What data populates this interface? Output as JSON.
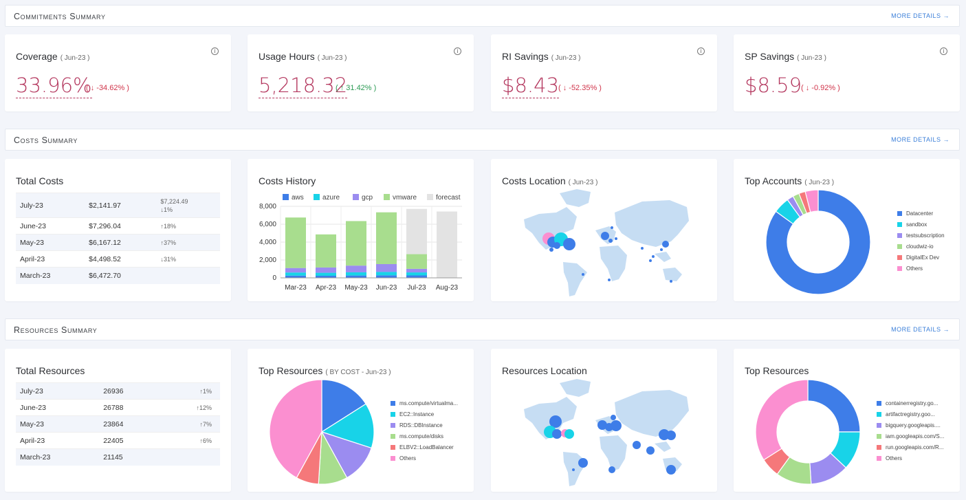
{
  "sections": {
    "commitments": "Commitments Summary",
    "costs": "Costs Summary",
    "resources": "Resources Summary",
    "more": "MORE DETAILS"
  },
  "kpis": [
    {
      "title": "Coverage",
      "period": "( Jun-23 )",
      "value": "33.96%",
      "change": "( ↓ -34.62% )",
      "dir": "down"
    },
    {
      "title": "Usage Hours",
      "period": "( Jun-23 )",
      "value": "5,218.32",
      "change": "( ↑ 31.42% )",
      "dir": "up"
    },
    {
      "title": "RI Savings",
      "period": "( Jun-23 )",
      "value": "$8.43",
      "change": "( ↓ -52.35% )",
      "dir": "down"
    },
    {
      "title": "SP Savings",
      "period": "( Jun-23 )",
      "value": "$8.59",
      "change": "( ↓ -0.92% )",
      "dir": "down"
    }
  ],
  "total_costs": {
    "title": "Total Costs",
    "rows": [
      {
        "month": "July-23",
        "value": "$2,141.97",
        "extra": "$7,224.49",
        "chg": "↓1%",
        "dir": "neutral"
      },
      {
        "month": "June-23",
        "value": "$7,296.04",
        "chg": "↑18%",
        "dir": "up"
      },
      {
        "month": "May-23",
        "value": "$6,167.12",
        "chg": "↑37%",
        "dir": "up"
      },
      {
        "month": "April-23",
        "value": "$4,498.52",
        "chg": "↓31%",
        "dir": "down"
      },
      {
        "month": "March-23",
        "value": "$6,472.70",
        "chg": "",
        "dir": ""
      }
    ]
  },
  "costs_history_title": "Costs History",
  "costs_location": {
    "title": "Costs Location",
    "period": "( Jun-23 )"
  },
  "top_accounts": {
    "title": "Top Accounts",
    "period": "( Jun-23 )"
  },
  "total_resources": {
    "title": "Total Resources",
    "rows": [
      {
        "month": "July-23",
        "value": "26936",
        "chg": "↑1%"
      },
      {
        "month": "June-23",
        "value": "26788",
        "chg": "↑12%"
      },
      {
        "month": "May-23",
        "value": "23864",
        "chg": "↑7%"
      },
      {
        "month": "April-23",
        "value": "22405",
        "chg": "↑6%"
      },
      {
        "month": "March-23",
        "value": "21145",
        "chg": ""
      }
    ]
  },
  "top_resources_cost": {
    "title": "Top Resources",
    "period": "( BY COST - Jun-23 )"
  },
  "resources_location": {
    "title": "Resources Location"
  },
  "top_resources": {
    "title": "Top Resources"
  },
  "chart_data": [
    {
      "type": "bar",
      "title": "Costs History",
      "categories": [
        "Mar-23",
        "Apr-23",
        "May-23",
        "Jun-23",
        "Jul-23",
        "Aug-23"
      ],
      "ylim": [
        0,
        8000
      ],
      "yticks": [
        "0",
        "2,000",
        "4,000",
        "6,000",
        "8,000"
      ],
      "series": [
        {
          "name": "aws",
          "color": "#3e7de8",
          "values": [
            250,
            230,
            260,
            280,
            270,
            0
          ]
        },
        {
          "name": "azure",
          "color": "#18d3e8",
          "values": [
            350,
            340,
            360,
            380,
            340,
            0
          ]
        },
        {
          "name": "gcp",
          "color": "#9b8cf0",
          "values": [
            500,
            590,
            750,
            880,
            400,
            0
          ]
        },
        {
          "name": "vmware",
          "color": "#a8dd8e",
          "values": [
            5650,
            3700,
            4980,
            5790,
            1640,
            0
          ]
        },
        {
          "name": "forecast",
          "color": "#e3e3e3",
          "values": [
            0,
            0,
            0,
            0,
            5060,
            7420
          ]
        }
      ]
    },
    {
      "type": "pie",
      "title": "Top Accounts",
      "donut": true,
      "labels": [
        "Datacenter",
        "sandbox",
        "testsubscription",
        "cloudwiz-io",
        "DigitalEx Dev",
        "Others"
      ],
      "values": [
        85,
        5,
        2,
        2,
        2,
        4
      ],
      "colors": [
        "#3e7de8",
        "#18d3e8",
        "#9b8cf0",
        "#a8dd8e",
        "#f5787a",
        "#fb8fd0"
      ]
    },
    {
      "type": "pie",
      "title": "Top Resources",
      "labels": [
        "ms.compute/virtualma...",
        "EC2::Instance",
        "RDS::DBInstance",
        "ms.compute/disks",
        "ELBV2::LoadBalancer",
        "Others"
      ],
      "values": [
        16,
        14,
        12,
        9,
        7,
        42
      ],
      "colors": [
        "#3e7de8",
        "#18d3e8",
        "#9b8cf0",
        "#a8dd8e",
        "#f5787a",
        "#fb8fd0"
      ]
    },
    {
      "type": "pie",
      "title": "Top Resources",
      "donut": true,
      "labels": [
        "containerregistry.go...",
        "artifactregistry.goo...",
        "bigquery.googleapis....",
        "iam.googleapis.com/S...",
        "run.googleapis.com/R...",
        "Others"
      ],
      "values": [
        25,
        12,
        12,
        11,
        6,
        34
      ],
      "colors": [
        "#3e7de8",
        "#18d3e8",
        "#9b8cf0",
        "#a8dd8e",
        "#f5787a",
        "#fb8fd0"
      ]
    }
  ]
}
